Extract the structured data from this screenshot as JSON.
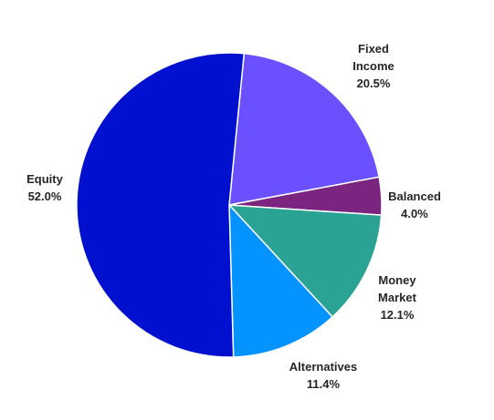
{
  "chart_data": {
    "type": "pie",
    "title": "",
    "start_angle_deg": 5.6,
    "direction": "clockwise",
    "slices": [
      {
        "label_lines": [
          "Fixed",
          "Income"
        ],
        "percent_label": "20.5%",
        "value": 20.5,
        "color": "#6A50FF"
      },
      {
        "label_lines": [
          "Balanced"
        ],
        "percent_label": "4.0%",
        "value": 4.0,
        "color": "#7B2580"
      },
      {
        "label_lines": [
          "Money",
          "Market"
        ],
        "percent_label": "12.1%",
        "value": 12.1,
        "color": "#2AA395"
      },
      {
        "label_lines": [
          "Alternatives"
        ],
        "percent_label": "11.4%",
        "value": 11.4,
        "color": "#0593FF"
      },
      {
        "label_lines": [
          "Equity"
        ],
        "percent_label": "52.0%",
        "value": 52.0,
        "color": "#0010CF"
      }
    ]
  }
}
